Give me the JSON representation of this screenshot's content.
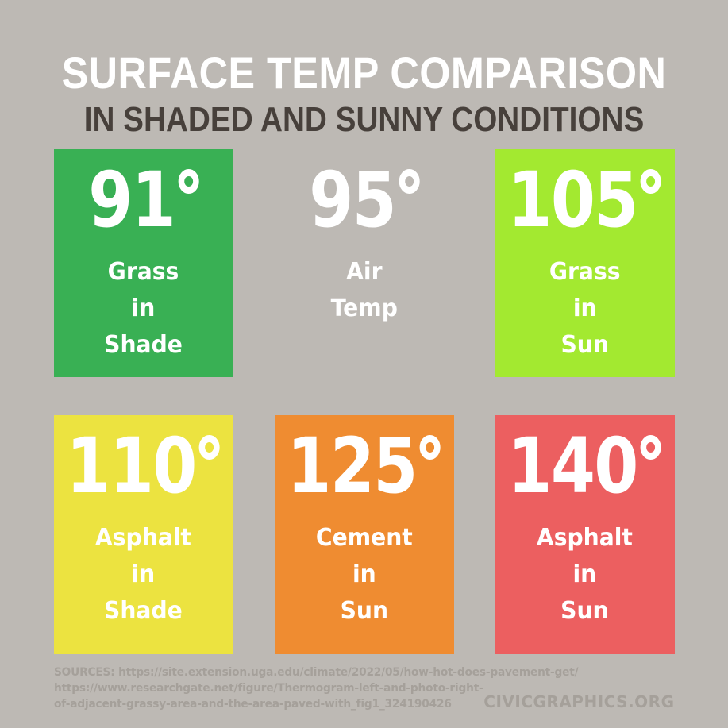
{
  "page": {
    "background": "#bdb9b4",
    "title_color": "#ffffff",
    "subtitle_color": "#47403b",
    "footer_color": "#a5a09a"
  },
  "header": {
    "title": "SURFACE TEMP COMPARISON",
    "subtitle": "IN SHADED AND SUNNY CONDITIONS"
  },
  "chart_data": {
    "type": "table",
    "title": "SURFACE TEMP COMPARISON IN SHADED AND SUNNY CONDITIONS",
    "unit": "degrees F",
    "categories": [
      "Grass in Shade",
      "Air Temp",
      "Grass in Sun",
      "Asphalt in Shade",
      "Cement in Sun",
      "Asphalt in Sun"
    ],
    "values": [
      91,
      95,
      105,
      110,
      125,
      140
    ]
  },
  "cards": [
    {
      "value": "91",
      "lines": [
        "Grass",
        "in",
        "Shade"
      ],
      "bg": "#39b054",
      "text_color": "#ffffff"
    },
    {
      "value": "95",
      "lines": [
        "Air",
        "Temp"
      ],
      "bg": "transparent",
      "text_color": "#ffffff"
    },
    {
      "value": "105",
      "lines": [
        "Grass",
        "in",
        "Sun"
      ],
      "bg": "#a3e930",
      "text_color": "#ffffff"
    },
    {
      "value": "110",
      "lines": [
        "Asphalt",
        "in",
        "Shade"
      ],
      "bg": "#ece340",
      "text_color": "#ffffff"
    },
    {
      "value": "125",
      "lines": [
        "Cement",
        "in",
        "Sun"
      ],
      "bg": "#ef8c31",
      "text_color": "#ffffff"
    },
    {
      "value": "140",
      "lines": [
        "Asphalt",
        "in",
        "Sun"
      ],
      "bg": "#ec5f60",
      "text_color": "#ffffff"
    }
  ],
  "footer": {
    "sources_line1": "SOURCES: https://site.extension.uga.edu/climate/2022/05/how-hot-does-pavement-get/",
    "sources_line2": "https://www.researchgate.net/figure/Thermogram-left-and-photo-right-",
    "sources_line3": "of-adjacent-grassy-area-and-the-area-paved-with_fig1_324190426",
    "credit": "CIVICGRAPHICS.ORG"
  }
}
